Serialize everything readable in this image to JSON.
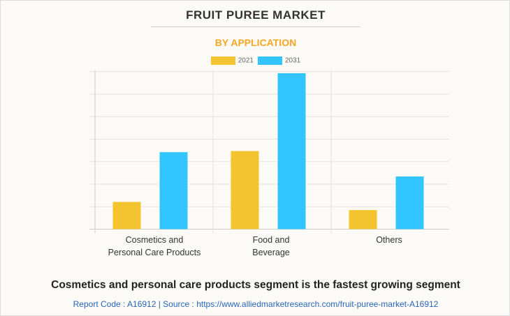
{
  "title": "FRUIT PUREE MARKET",
  "subtitle": "BY APPLICATION",
  "headline": "Cosmetics and personal care products segment is the fastest growing segment",
  "footer": "Report Code : A16912  |  Source : https://www.alliedmarketresearch.com/fruit-puree-market-A16912",
  "chart_data": {
    "type": "bar",
    "categories": [
      "Cosmetics and Personal Care Products",
      "Food and Beverage",
      "Others"
    ],
    "category_lines": [
      [
        "Cosmetics and",
        "Personal Care Products"
      ],
      [
        "Food and",
        "Beverage"
      ],
      [
        "Others"
      ]
    ],
    "series": [
      {
        "name": "2021",
        "color": "#f4c430",
        "values": [
          1.21,
          3.47,
          0.85
        ]
      },
      {
        "name": "2031",
        "color": "#33c5ff",
        "values": [
          3.42,
          6.93,
          2.34
        ]
      }
    ],
    "ylim": [
      0,
      7
    ],
    "y_gridlines": 7,
    "y_tick_labels_shown": false,
    "grid": true,
    "legend": "top-center",
    "xlabel": "",
    "ylabel": ""
  }
}
